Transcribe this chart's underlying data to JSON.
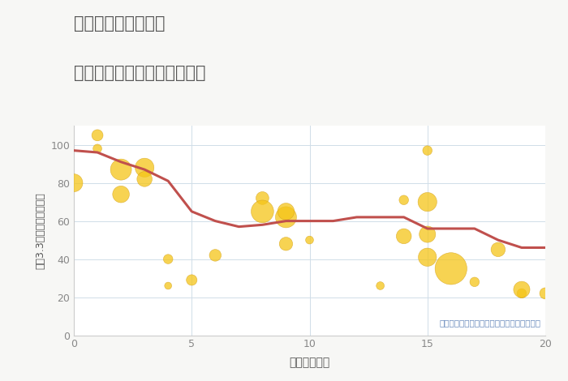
{
  "title_line1": "岐阜県本巣市郡府の",
  "title_line2": "駅距離別中古マンション価格",
  "xlabel": "駅距離（分）",
  "ylabel": "坪（3.3㎡）単価（万円）",
  "note": "円の大きさは、取引のあった物件面積を示す",
  "bg_color": "#f7f7f5",
  "plot_bg_color": "#ffffff",
  "line_color": "#c0504d",
  "scatter_color": "#f5c518",
  "scatter_alpha": 0.75,
  "scatter_edge_color": "#d4a017",
  "title_color": "#555555",
  "note_color": "#6688bb",
  "axis_label_color": "#555555",
  "tick_color": "#888888",
  "grid_color": "#d0dde8",
  "spine_color": "#cccccc",
  "xlim": [
    0,
    20
  ],
  "ylim": [
    0,
    110
  ],
  "xticks": [
    0,
    5,
    10,
    15,
    20
  ],
  "yticks": [
    0,
    20,
    40,
    60,
    80,
    100
  ],
  "line_x": [
    0,
    1,
    2,
    3,
    4,
    5,
    6,
    7,
    8,
    9,
    10,
    11,
    12,
    13,
    14,
    15,
    16,
    17,
    18,
    19,
    20
  ],
  "line_y": [
    97,
    96,
    91,
    87,
    81,
    65,
    60,
    57,
    58,
    60,
    60,
    60,
    62,
    62,
    62,
    56,
    56,
    56,
    50,
    46,
    46
  ],
  "scatter_x": [
    0,
    1,
    1,
    2,
    2,
    3,
    3,
    4,
    4,
    5,
    6,
    8,
    8,
    9,
    9,
    9,
    10,
    13,
    14,
    14,
    15,
    15,
    15,
    15,
    16,
    17,
    18,
    19,
    19,
    20
  ],
  "scatter_y": [
    80,
    98,
    105,
    87,
    74,
    88,
    82,
    26,
    40,
    29,
    42,
    72,
    65,
    62,
    65,
    48,
    50,
    26,
    71,
    52,
    97,
    70,
    41,
    53,
    35,
    28,
    45,
    22,
    24,
    22
  ],
  "scatter_size": [
    250,
    60,
    100,
    350,
    220,
    280,
    180,
    40,
    70,
    90,
    110,
    130,
    400,
    350,
    220,
    140,
    50,
    50,
    70,
    180,
    70,
    280,
    260,
    210,
    800,
    70,
    160,
    70,
    210,
    100
  ]
}
